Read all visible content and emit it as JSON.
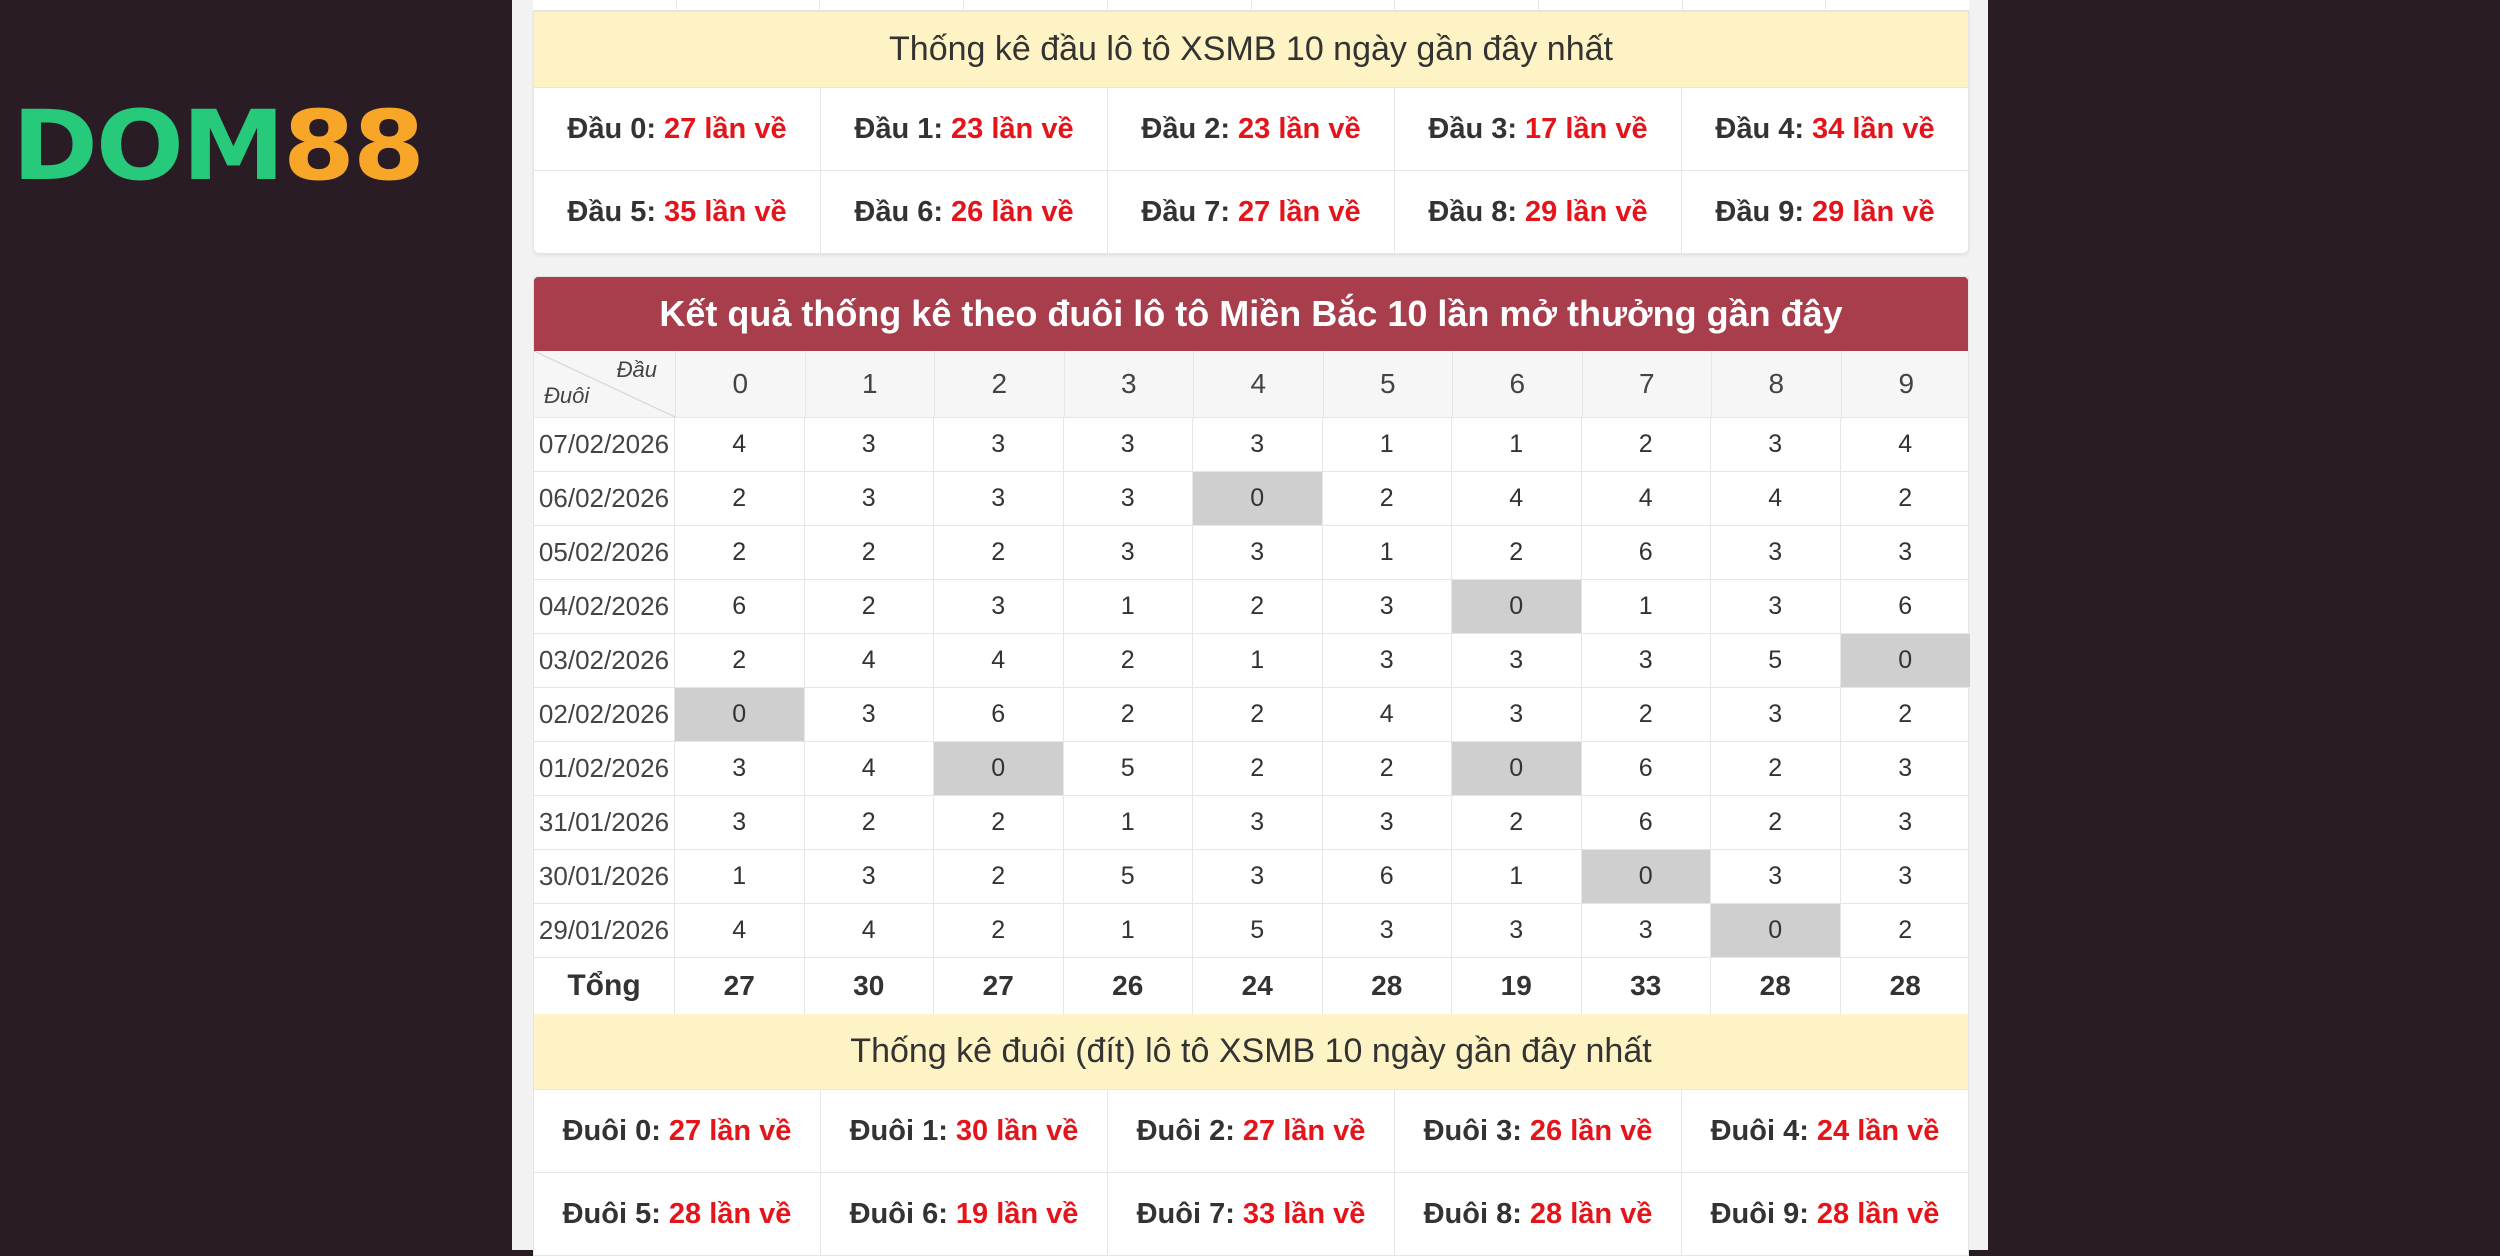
{
  "brand": {
    "logo_part1": "DOM",
    "logo_part2": "88"
  },
  "head_stats": {
    "title": "Thống kê đầu lô tô XSMB 10 ngày gần đây nhất",
    "items": [
      {
        "label": "Đầu 0:",
        "value": "27 lần về"
      },
      {
        "label": "Đầu 1:",
        "value": "23 lần về"
      },
      {
        "label": "Đầu 2:",
        "value": "23 lần về"
      },
      {
        "label": "Đầu 3:",
        "value": "17 lần về"
      },
      {
        "label": "Đầu 4:",
        "value": "34 lần về"
      },
      {
        "label": "Đầu 5:",
        "value": "35 lần về"
      },
      {
        "label": "Đầu 6:",
        "value": "26 lần về"
      },
      {
        "label": "Đầu 7:",
        "value": "27 lần về"
      },
      {
        "label": "Đầu 8:",
        "value": "29 lần về"
      },
      {
        "label": "Đầu 9:",
        "value": "29 lần về"
      }
    ]
  },
  "table": {
    "title": "Kết quả thống kê theo đuôi lô tô Miền Bắc 10 lần mở thưởng gần đây",
    "corner_top": "Đầu",
    "corner_bottom": "Đuôi",
    "columns": [
      "0",
      "1",
      "2",
      "3",
      "4",
      "5",
      "6",
      "7",
      "8",
      "9"
    ],
    "rows": [
      {
        "date": "07/02/2026",
        "values": [
          "4",
          "3",
          "3",
          "3",
          "3",
          "1",
          "1",
          "2",
          "3",
          "4"
        ]
      },
      {
        "date": "06/02/2026",
        "values": [
          "2",
          "3",
          "3",
          "3",
          "0",
          "2",
          "4",
          "4",
          "4",
          "2"
        ]
      },
      {
        "date": "05/02/2026",
        "values": [
          "2",
          "2",
          "2",
          "3",
          "3",
          "1",
          "2",
          "6",
          "3",
          "3"
        ]
      },
      {
        "date": "04/02/2026",
        "values": [
          "6",
          "2",
          "3",
          "1",
          "2",
          "3",
          "0",
          "1",
          "3",
          "6"
        ]
      },
      {
        "date": "03/02/2026",
        "values": [
          "2",
          "4",
          "4",
          "2",
          "1",
          "3",
          "3",
          "3",
          "5",
          "0"
        ]
      },
      {
        "date": "02/02/2026",
        "values": [
          "0",
          "3",
          "6",
          "2",
          "2",
          "4",
          "3",
          "2",
          "3",
          "2"
        ]
      },
      {
        "date": "01/02/2026",
        "values": [
          "3",
          "4",
          "0",
          "5",
          "2",
          "2",
          "0",
          "6",
          "2",
          "3"
        ]
      },
      {
        "date": "31/01/2026",
        "values": [
          "3",
          "2",
          "2",
          "1",
          "3",
          "3",
          "2",
          "6",
          "2",
          "3"
        ]
      },
      {
        "date": "30/01/2026",
        "values": [
          "1",
          "3",
          "2",
          "5",
          "3",
          "6",
          "1",
          "0",
          "3",
          "3"
        ]
      },
      {
        "date": "29/01/2026",
        "values": [
          "4",
          "4",
          "2",
          "1",
          "5",
          "3",
          "3",
          "3",
          "0",
          "2"
        ]
      }
    ],
    "total_label": "Tổng",
    "totals": [
      "27",
      "30",
      "27",
      "26",
      "24",
      "28",
      "19",
      "33",
      "28",
      "28"
    ]
  },
  "tail_stats": {
    "title": "Thống kê đuôi (đít) lô tô XSMB 10 ngày gần đây nhất",
    "items": [
      {
        "label": "Đuôi 0:",
        "value": "27 lần về"
      },
      {
        "label": "Đuôi 1:",
        "value": "30 lần về"
      },
      {
        "label": "Đuôi 2:",
        "value": "27 lần về"
      },
      {
        "label": "Đuôi 3:",
        "value": "26 lần về"
      },
      {
        "label": "Đuôi 4:",
        "value": "24 lần về"
      },
      {
        "label": "Đuôi 5:",
        "value": "28 lần về"
      },
      {
        "label": "Đuôi 6:",
        "value": "19 lần về"
      },
      {
        "label": "Đuôi 7:",
        "value": "33 lần về"
      },
      {
        "label": "Đuôi 8:",
        "value": "28 lần về"
      },
      {
        "label": "Đuôi 9:",
        "value": "28 lần về"
      }
    ]
  },
  "colors": {
    "accent_red": "#e4141b",
    "title_bar": "#a83d4c",
    "stat_title_bg": "#fdf3c4",
    "zero_cell": "#cfcfcf"
  }
}
